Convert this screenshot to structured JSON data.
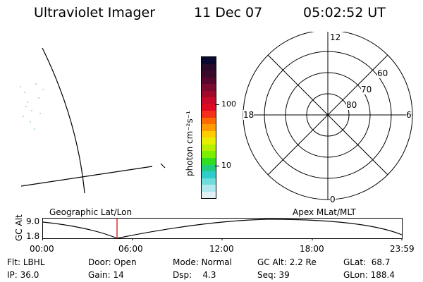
{
  "header": {
    "instrument": "Ultraviolet Imager",
    "date": "11 Dec 07",
    "time": "05:02:52 UT"
  },
  "colorbar": {
    "unit_label": "photon cm⁻²s⁻¹",
    "tick_100": "100",
    "tick_10": "10"
  },
  "polar": {
    "mlt_top": "12",
    "mlt_left": "18",
    "mlt_right": "6",
    "mlt_bottom": "0",
    "lat_60": "60",
    "lat_70": "70",
    "lat_80": "80"
  },
  "orbit": {
    "ylabel": "GC Alt",
    "y_top_tick": "9.0",
    "y_bottom_tick": "1.8",
    "left_title": "Geographic Lat/Lon",
    "right_title": "Apex MLat/MLT",
    "x_ticks": [
      "00:00",
      "06:00",
      "12:00",
      "18:00",
      "23:59"
    ]
  },
  "info": {
    "flt_label": "Flt:",
    "flt_value": "LBHL",
    "ip_label": "IP:",
    "ip_value": "36.0",
    "door_label": "Door:",
    "door_value": "Open",
    "gain_label": "Gain:",
    "gain_value": "14",
    "mode_label": "Mode:",
    "mode_value": "Normal",
    "dsp_label": "Dsp:",
    "dsp_value": "4.3",
    "gcalt_label": "GC Alt:",
    "gcalt_value": "2.2 Re",
    "seq_label": "Seq:",
    "seq_value": "39",
    "glat_label": "GLat:",
    "glat_value": "68.7",
    "glon_label": "GLon:",
    "glon_value": "188.4"
  },
  "colors": {
    "colorbar": [
      "#0a0a30",
      "#2a0a2a",
      "#3a0a2a",
      "#55082a",
      "#7a0a30",
      "#a00a2a",
      "#c80a2a",
      "#e00a20",
      "#f5301a",
      "#ff6a00",
      "#ff9a00",
      "#ffcc00",
      "#e8ee00",
      "#b8ee00",
      "#7cee00",
      "#30dd20",
      "#20cc80",
      "#30cccc",
      "#70dddd",
      "#b0e8ee",
      "#e0f0f4"
    ],
    "current_time_marker": "#cc0000"
  }
}
